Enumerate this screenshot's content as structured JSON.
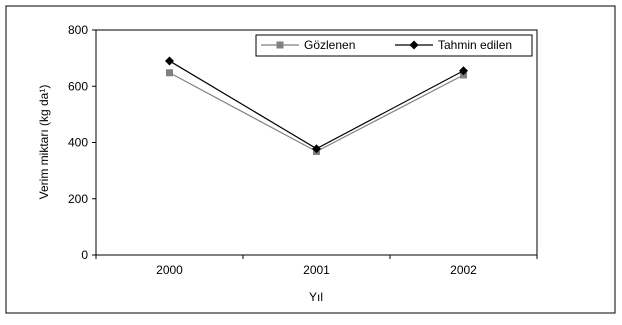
{
  "chart_data": {
    "type": "line",
    "categories": [
      "2000",
      "2001",
      "2002"
    ],
    "series": [
      {
        "name": "Gözlenen",
        "values": [
          648,
          368,
          640
        ],
        "color": "#808080",
        "marker": "square"
      },
      {
        "name": "Tahmin edilen",
        "values": [
          690,
          378,
          655
        ],
        "color": "#000000",
        "marker": "diamond"
      }
    ],
    "xlabel": "Yıl",
    "ylabel": "Verim miktarı (kg da¹)",
    "ylim": [
      0,
      800
    ],
    "yticks": [
      0,
      200,
      400,
      600,
      800
    ],
    "grid": false,
    "legend_position": "top-right"
  }
}
